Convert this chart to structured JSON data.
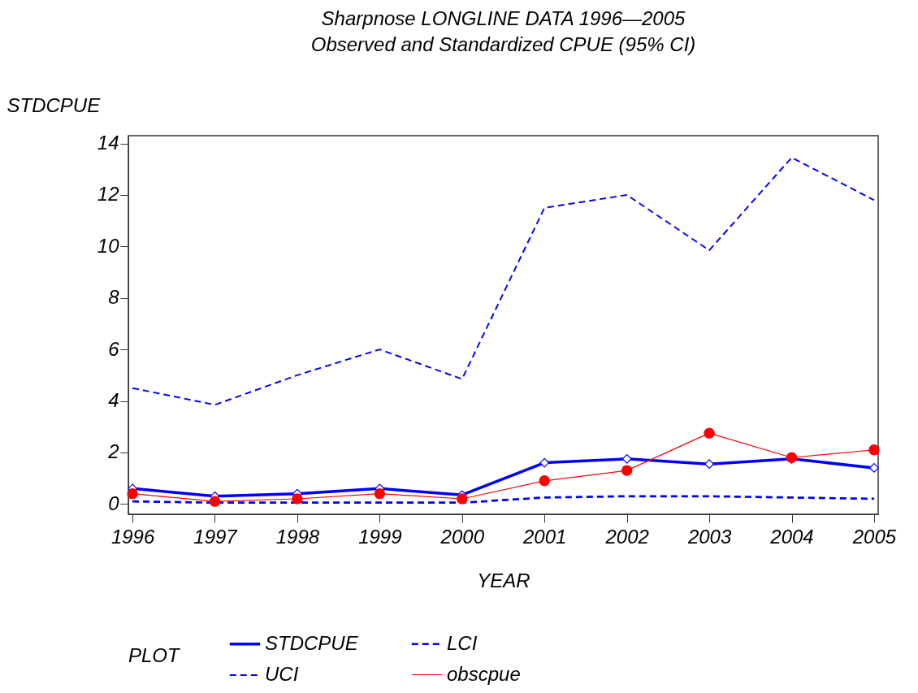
{
  "chart_data": {
    "type": "line",
    "title": "Sharpnose LONGLINE DATA 1996—2005",
    "subtitle": "Observed and Standardized CPUE (95% CI)",
    "xlabel": "YEAR",
    "ylabel": "STDCPUE",
    "legend_title": "PLOT",
    "legend": "bottom",
    "x": [
      1996,
      1997,
      1998,
      1999,
      2000,
      2001,
      2002,
      2003,
      2004,
      2005
    ],
    "series": [
      {
        "name": "STDCPUE",
        "color": "#0000ff",
        "marker": "diamond",
        "line_style": "solid",
        "values": [
          0.6,
          0.3,
          0.4,
          0.6,
          0.35,
          1.6,
          1.75,
          1.55,
          1.75,
          1.4
        ]
      },
      {
        "name": "LCI",
        "color": "#0000ff",
        "marker": "none",
        "line_style": "dashed",
        "values": [
          0.1,
          0.05,
          0.05,
          0.05,
          0.05,
          0.25,
          0.3,
          0.3,
          0.25,
          0.2
        ]
      },
      {
        "name": "UCI",
        "color": "#0000ff",
        "marker": "none",
        "line_style": "dashed",
        "values": [
          4.5,
          3.85,
          5.0,
          6.0,
          4.85,
          11.5,
          12.0,
          9.85,
          13.45,
          11.8
        ]
      },
      {
        "name": "obscpue",
        "color": "#ff0000",
        "marker": "circle",
        "line_style": "solid",
        "values": [
          0.4,
          0.1,
          0.2,
          0.4,
          0.2,
          0.9,
          1.3,
          2.75,
          1.8,
          2.1
        ]
      }
    ],
    "xlim": [
      1995.95,
      2005.05
    ],
    "xticks": [
      1996,
      1997,
      1998,
      1999,
      2000,
      2001,
      2002,
      2003,
      2004,
      2005
    ],
    "ylim": [
      -0.4,
      14.3
    ],
    "yticks": [
      0,
      2,
      4,
      6,
      8,
      10,
      12,
      14
    ],
    "grid": false
  }
}
